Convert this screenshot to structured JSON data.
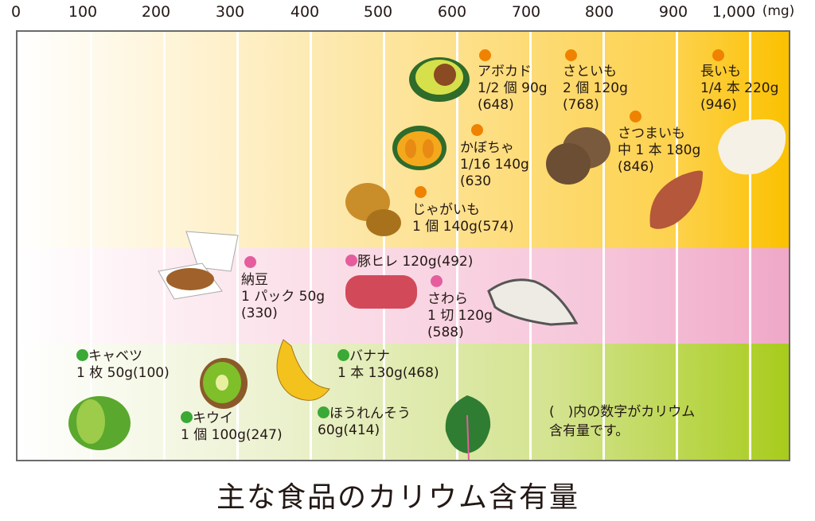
{
  "title": "主な食品のカリウム含有量",
  "note_line1": "(　)内の数字がカリウム",
  "note_line2": "含有量です。",
  "colors": {
    "vegetables_potatoes": "#ef8200",
    "protein": "#e55d9c",
    "greens_fruit": "#3aa935"
  },
  "chart_data": {
    "type": "scatter",
    "title": "主な食品のカリウム含有量",
    "unit": "(mg)",
    "xlim": [
      0,
      1000
    ],
    "x_ticks": [
      "0",
      "100",
      "200",
      "300",
      "400",
      "500",
      "600",
      "700",
      "800",
      "900",
      "1,000"
    ],
    "grid": true,
    "items": [
      {
        "name": "アボカド",
        "portion": "1/2 個 90g",
        "value": 648,
        "value_label": "(648)",
        "group": "orange"
      },
      {
        "name": "さといも",
        "portion": "2 個 120g",
        "value": 768,
        "value_label": "(768)",
        "group": "orange"
      },
      {
        "name": "長いも",
        "portion": "1/4 本 220g",
        "value": 946,
        "value_label": "(946)",
        "group": "orange"
      },
      {
        "name": "かぼちゃ",
        "portion": "1/16  140g",
        "value": 630,
        "value_label": "(630",
        "group": "orange"
      },
      {
        "name": "さつまいも",
        "portion": "中 1 本 180g",
        "value": 846,
        "value_label": "(846)",
        "group": "orange"
      },
      {
        "name": "じゃがいも",
        "portion": "1 個  140g(574)",
        "value": 574,
        "group": "orange"
      },
      {
        "name": "納豆",
        "portion": "1 パック 50g",
        "value": 330,
        "value_label": "(330)",
        "group": "pink"
      },
      {
        "name": "豚ヒレ 120g(492)",
        "value": 492,
        "group": "pink"
      },
      {
        "name": "さわら",
        "portion": "1 切  120g",
        "value": 588,
        "value_label": "(588)",
        "group": "pink"
      },
      {
        "name": "キャベツ",
        "portion": "1 枚 50g(100)",
        "value": 100,
        "group": "green"
      },
      {
        "name": "バナナ",
        "portion": "1 本 130g(468)",
        "value": 468,
        "group": "green"
      },
      {
        "name": "キウイ",
        "portion": "1 個 100g(247)",
        "value": 247,
        "group": "green"
      },
      {
        "name": "ほうれんそう",
        "portion": "60g(414)",
        "value": 414,
        "group": "green"
      }
    ]
  }
}
